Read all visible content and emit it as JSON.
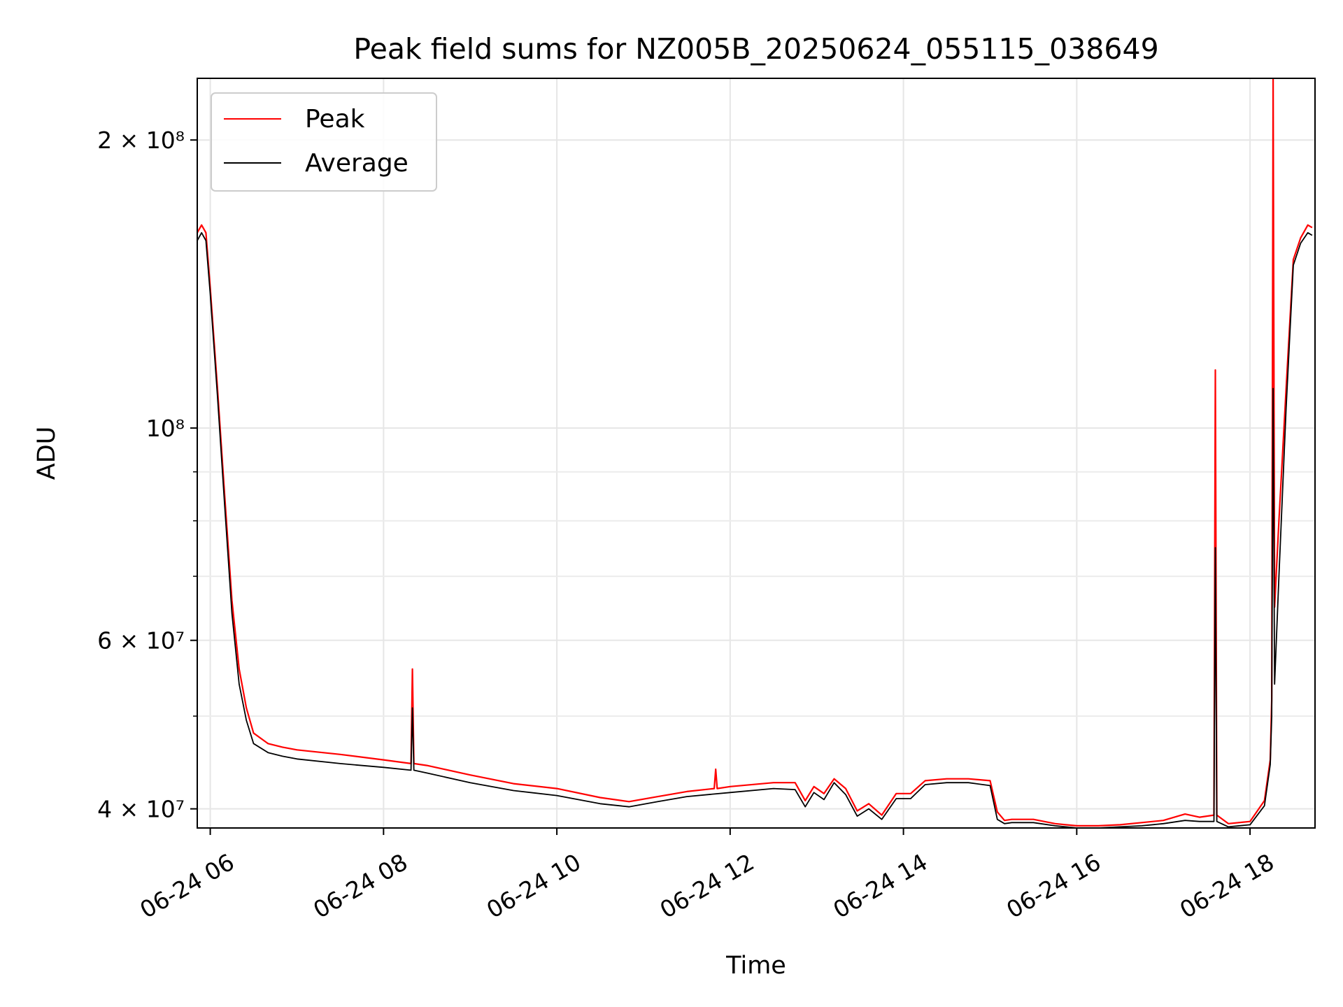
{
  "chart_data": {
    "type": "line",
    "title": "Peak field sums for NZ005B_20250624_055115_038649",
    "xlabel": "Time",
    "ylabel": "ADU",
    "y_scale": "log",
    "xlim": [
      "2025-06-24 05:51",
      "2025-06-24 18:45"
    ],
    "ylim": [
      38200000,
      232000000
    ],
    "grid": true,
    "legend_position": "top-left",
    "x_ticks": [
      {
        "label": "06-24 06",
        "value": "2025-06-24 06:00"
      },
      {
        "label": "06-24 08",
        "value": "2025-06-24 08:00"
      },
      {
        "label": "06-24 10",
        "value": "2025-06-24 10:00"
      },
      {
        "label": "06-24 12",
        "value": "2025-06-24 12:00"
      },
      {
        "label": "06-24 14",
        "value": "2025-06-24 14:00"
      },
      {
        "label": "06-24 16",
        "value": "2025-06-24 16:00"
      },
      {
        "label": "06-24 18",
        "value": "2025-06-24 18:00"
      }
    ],
    "y_ticks_major": [
      {
        "label": "2 × 10⁸",
        "value": 200000000
      },
      {
        "label": "10⁸",
        "value": 100000000
      },
      {
        "label": "6 × 10⁷",
        "value": 60000000
      },
      {
        "label": "4 × 10⁷",
        "value": 40000000
      }
    ],
    "y_ticks_minor": [
      50000000,
      70000000,
      80000000,
      90000000
    ],
    "series": [
      {
        "name": "Peak",
        "color": "#ff0000",
        "x": [
          "2025-06-24 05:51",
          "2025-06-24 05:54",
          "2025-06-24 05:57",
          "2025-06-24 06:00",
          "2025-06-24 06:05",
          "2025-06-24 06:10",
          "2025-06-24 06:15",
          "2025-06-24 06:20",
          "2025-06-24 06:25",
          "2025-06-24 06:30",
          "2025-06-24 06:40",
          "2025-06-24 06:50",
          "2025-06-24 07:00",
          "2025-06-24 07:30",
          "2025-06-24 08:00",
          "2025-06-24 08:19",
          "2025-06-24 08:20",
          "2025-06-24 08:21",
          "2025-06-24 08:30",
          "2025-06-24 09:00",
          "2025-06-24 09:30",
          "2025-06-24 10:00",
          "2025-06-24 10:30",
          "2025-06-24 10:50",
          "2025-06-24 11:10",
          "2025-06-24 11:30",
          "2025-06-24 11:49",
          "2025-06-24 11:50",
          "2025-06-24 11:51",
          "2025-06-24 12:00",
          "2025-06-24 12:30",
          "2025-06-24 12:45",
          "2025-06-24 12:52",
          "2025-06-24 12:58",
          "2025-06-24 13:05",
          "2025-06-24 13:12",
          "2025-06-24 13:20",
          "2025-06-24 13:28",
          "2025-06-24 13:36",
          "2025-06-24 13:45",
          "2025-06-24 13:55",
          "2025-06-24 14:05",
          "2025-06-24 14:15",
          "2025-06-24 14:30",
          "2025-06-24 14:45",
          "2025-06-24 15:00",
          "2025-06-24 15:05",
          "2025-06-24 15:10",
          "2025-06-24 15:15",
          "2025-06-24 15:30",
          "2025-06-24 15:45",
          "2025-06-24 16:00",
          "2025-06-24 16:15",
          "2025-06-24 16:30",
          "2025-06-24 16:45",
          "2025-06-24 17:00",
          "2025-06-24 17:15",
          "2025-06-24 17:25",
          "2025-06-24 17:35",
          "2025-06-24 17:36",
          "2025-06-24 17:37",
          "2025-06-24 17:45",
          "2025-06-24 18:00",
          "2025-06-24 18:10",
          "2025-06-24 18:14",
          "2025-06-24 18:15",
          "2025-06-24 18:16",
          "2025-06-24 18:17",
          "2025-06-24 18:20",
          "2025-06-24 18:25",
          "2025-06-24 18:30",
          "2025-06-24 18:35",
          "2025-06-24 18:40",
          "2025-06-24 18:43"
        ],
        "y": [
          160000000,
          163000000,
          160000000,
          140000000,
          110000000,
          85000000,
          66000000,
          56000000,
          51000000,
          48000000,
          46800000,
          46400000,
          46100000,
          45600000,
          45000000,
          44600000,
          56000000,
          44600000,
          44400000,
          43400000,
          42500000,
          42000000,
          41100000,
          40700000,
          41200000,
          41700000,
          42000000,
          44000000,
          42000000,
          42200000,
          42600000,
          42600000,
          40800000,
          42200000,
          41500000,
          43000000,
          42000000,
          39800000,
          40500000,
          39400000,
          41500000,
          41500000,
          42800000,
          43000000,
          43000000,
          42800000,
          39700000,
          38900000,
          39000000,
          39000000,
          38600000,
          38400000,
          38400000,
          38500000,
          38700000,
          38900000,
          39500000,
          39200000,
          39400000,
          115000000,
          39400000,
          38600000,
          38800000,
          40800000,
          45000000,
          52000000,
          232000000,
          65000000,
          80000000,
          110000000,
          150000000,
          158000000,
          163000000,
          162000000
        ]
      },
      {
        "name": "Average",
        "color": "#000000",
        "x": [
          "2025-06-24 05:51",
          "2025-06-24 05:54",
          "2025-06-24 05:57",
          "2025-06-24 06:00",
          "2025-06-24 06:05",
          "2025-06-24 06:10",
          "2025-06-24 06:15",
          "2025-06-24 06:20",
          "2025-06-24 06:25",
          "2025-06-24 06:30",
          "2025-06-24 06:40",
          "2025-06-24 06:50",
          "2025-06-24 07:00",
          "2025-06-24 07:30",
          "2025-06-24 08:00",
          "2025-06-24 08:19",
          "2025-06-24 08:20",
          "2025-06-24 08:21",
          "2025-06-24 08:30",
          "2025-06-24 09:00",
          "2025-06-24 09:30",
          "2025-06-24 10:00",
          "2025-06-24 10:30",
          "2025-06-24 10:50",
          "2025-06-24 11:10",
          "2025-06-24 11:30",
          "2025-06-24 12:00",
          "2025-06-24 12:30",
          "2025-06-24 12:45",
          "2025-06-24 12:52",
          "2025-06-24 12:58",
          "2025-06-24 13:05",
          "2025-06-24 13:12",
          "2025-06-24 13:20",
          "2025-06-24 13:28",
          "2025-06-24 13:36",
          "2025-06-24 13:45",
          "2025-06-24 13:55",
          "2025-06-24 14:05",
          "2025-06-24 14:15",
          "2025-06-24 14:30",
          "2025-06-24 14:45",
          "2025-06-24 15:00",
          "2025-06-24 15:05",
          "2025-06-24 15:10",
          "2025-06-24 15:15",
          "2025-06-24 15:30",
          "2025-06-24 15:45",
          "2025-06-24 16:00",
          "2025-06-24 16:15",
          "2025-06-24 16:30",
          "2025-06-24 16:45",
          "2025-06-24 17:00",
          "2025-06-24 17:15",
          "2025-06-24 17:25",
          "2025-06-24 17:35",
          "2025-06-24 17:36",
          "2025-06-24 17:37",
          "2025-06-24 17:45",
          "2025-06-24 18:00",
          "2025-06-24 18:10",
          "2025-06-24 18:14",
          "2025-06-24 18:15",
          "2025-06-24 18:16",
          "2025-06-24 18:17",
          "2025-06-24 18:20",
          "2025-06-24 18:25",
          "2025-06-24 18:30",
          "2025-06-24 18:35",
          "2025-06-24 18:40",
          "2025-06-24 18:43"
        ],
        "y": [
          157000000,
          160000000,
          157000000,
          138000000,
          108000000,
          83000000,
          64000000,
          54000000,
          49500000,
          46800000,
          45800000,
          45400000,
          45100000,
          44600000,
          44200000,
          43900000,
          51000000,
          43900000,
          43600000,
          42600000,
          41800000,
          41300000,
          40500000,
          40200000,
          40700000,
          41200000,
          41600000,
          42000000,
          41900000,
          40200000,
          41600000,
          40900000,
          42600000,
          41400000,
          39300000,
          40000000,
          39000000,
          41000000,
          41000000,
          42400000,
          42600000,
          42600000,
          42300000,
          39000000,
          38600000,
          38700000,
          38700000,
          38400000,
          38200000,
          38200000,
          38300000,
          38400000,
          38600000,
          38900000,
          38800000,
          38800000,
          75000000,
          38800000,
          38300000,
          38500000,
          40300000,
          44500000,
          50000000,
          110000000,
          54000000,
          70000000,
          105000000,
          148000000,
          156000000,
          160000000,
          159000000
        ]
      }
    ]
  }
}
